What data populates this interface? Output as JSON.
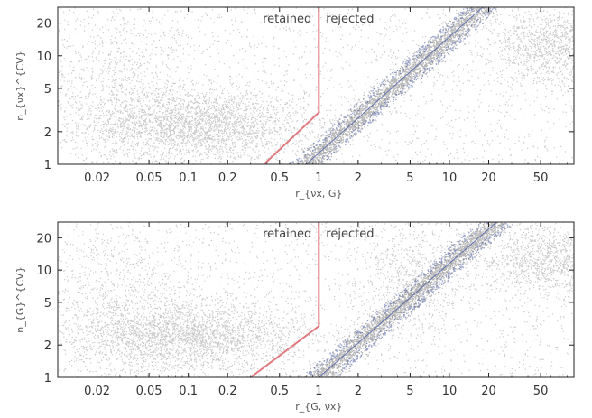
{
  "chart_data": [
    {
      "type": "scatter",
      "title": "",
      "xlabel": "r_{νx, G}",
      "ylabel": "n_{νx}^{CV}",
      "xscale": "log",
      "yscale": "log",
      "xlim": [
        0.01,
        90
      ],
      "ylim": [
        1,
        28
      ],
      "x_ticks": [
        0.02,
        0.05,
        0.1,
        0.2,
        0.5,
        1,
        2,
        5,
        10,
        20,
        50
      ],
      "x_tick_labels": [
        "0.02",
        "0.05",
        "0.1",
        "0.2",
        "0.5",
        "1",
        "2",
        "5",
        "10",
        "20",
        "50"
      ],
      "y_ticks": [
        1,
        2,
        5,
        10,
        20
      ],
      "y_tick_labels": [
        "1",
        "2",
        "5",
        "10",
        "20"
      ],
      "grid": false,
      "point_color": "#8a8a8a",
      "highlight_color": "#4a5fa8",
      "boundary_color": "#e07a80",
      "region_labels": [
        "retained",
        "rejected"
      ],
      "boundary": {
        "x": [
          0.38,
          1,
          1
        ],
        "y": [
          1,
          3,
          28
        ]
      },
      "ridge": {
        "x": [
          0.8,
          18
        ],
        "y": [
          1,
          28
        ]
      },
      "clusters": [
        {
          "x": 0.12,
          "y": 2.3,
          "spread_x": 2.6,
          "spread_y": 1.45,
          "n": 2600
        },
        {
          "x": 0.03,
          "y": 5.0,
          "spread_x": 2.0,
          "spread_y": 2.2,
          "n": 700
        },
        {
          "x": 60,
          "y": 12,
          "spread_x": 1.7,
          "spread_y": 1.5,
          "n": 1100
        }
      ]
    },
    {
      "type": "scatter",
      "title": "",
      "xlabel": "r_{G, νx}",
      "ylabel": "n_{G}^{CV}",
      "xscale": "log",
      "yscale": "log",
      "xlim": [
        0.01,
        90
      ],
      "ylim": [
        1,
        28
      ],
      "x_ticks": [
        0.02,
        0.05,
        0.1,
        0.2,
        0.5,
        1,
        2,
        5,
        10,
        20,
        50
      ],
      "x_tick_labels": [
        "0.02",
        "0.05",
        "0.1",
        "0.2",
        "0.5",
        "1",
        "2",
        "5",
        "10",
        "20",
        "50"
      ],
      "y_ticks": [
        1,
        2,
        5,
        10,
        20
      ],
      "y_tick_labels": [
        "1",
        "2",
        "5",
        "10",
        "20"
      ],
      "grid": false,
      "point_color": "#8a8a8a",
      "highlight_color": "#4a5fa8",
      "boundary_color": "#e07a80",
      "region_labels": [
        "retained",
        "rejected"
      ],
      "boundary": {
        "x": [
          0.3,
          1,
          1
        ],
        "y": [
          1,
          3,
          28
        ]
      },
      "ridge": {
        "x": [
          1,
          23
        ],
        "y": [
          1,
          28
        ]
      },
      "clusters": [
        {
          "x": 0.1,
          "y": 2.4,
          "spread_x": 2.7,
          "spread_y": 1.45,
          "n": 2600
        },
        {
          "x": 0.03,
          "y": 5.0,
          "spread_x": 2.0,
          "spread_y": 2.2,
          "n": 700
        },
        {
          "x": 5,
          "y": 8,
          "spread_x": 1.6,
          "spread_y": 1.8,
          "n": 600
        },
        {
          "x": 55,
          "y": 12,
          "spread_x": 1.8,
          "spread_y": 1.5,
          "n": 1100
        }
      ]
    }
  ]
}
